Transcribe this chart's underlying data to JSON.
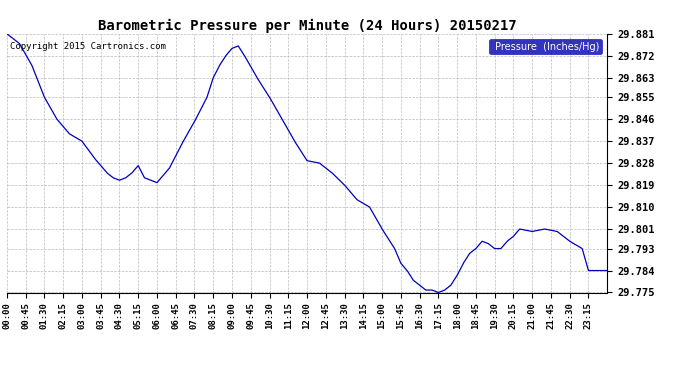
{
  "title": "Barometric Pressure per Minute (24 Hours) 20150217",
  "copyright": "Copyright 2015 Cartronics.com",
  "legend_label": "Pressure  (Inches/Hg)",
  "line_color": "#0000bb",
  "bg_color": "#ffffff",
  "plot_bg_color": "#ffffff",
  "grid_color": "#bbbbbb",
  "grid_style": "--",
  "ylim": [
    29.775,
    29.881
  ],
  "yticks": [
    29.775,
    29.784,
    29.793,
    29.801,
    29.81,
    29.819,
    29.828,
    29.837,
    29.846,
    29.855,
    29.863,
    29.872,
    29.881
  ],
  "xtick_labels": [
    "00:00",
    "00:45",
    "01:30",
    "02:15",
    "03:00",
    "03:45",
    "04:30",
    "05:15",
    "06:00",
    "06:45",
    "07:30",
    "08:15",
    "09:00",
    "09:45",
    "10:30",
    "11:15",
    "12:00",
    "12:45",
    "13:30",
    "14:15",
    "15:00",
    "15:45",
    "16:30",
    "17:15",
    "18:00",
    "18:45",
    "19:30",
    "20:15",
    "21:00",
    "21:45",
    "22:30",
    "23:15"
  ],
  "keypoints_x": [
    0,
    30,
    60,
    90,
    120,
    150,
    180,
    210,
    225,
    240,
    255,
    270,
    285,
    300,
    315,
    330,
    360,
    390,
    420,
    450,
    480,
    495,
    510,
    525,
    540,
    555,
    570,
    600,
    630,
    660,
    690,
    720,
    750,
    780,
    810,
    840,
    870,
    900,
    930,
    945,
    960,
    975,
    990,
    1005,
    1020,
    1035,
    1050,
    1065,
    1080,
    1095,
    1110,
    1125,
    1140,
    1155,
    1170,
    1185,
    1200,
    1215,
    1230,
    1260,
    1290,
    1320,
    1350,
    1380,
    1395,
    1440
  ],
  "keypoints_y": [
    29.881,
    29.877,
    29.868,
    29.855,
    29.846,
    29.84,
    29.837,
    29.83,
    29.827,
    29.824,
    29.822,
    29.821,
    29.822,
    29.824,
    29.827,
    29.822,
    29.82,
    29.826,
    29.836,
    29.845,
    29.855,
    29.863,
    29.868,
    29.872,
    29.875,
    29.876,
    29.872,
    29.863,
    29.855,
    29.846,
    29.837,
    29.829,
    29.828,
    29.824,
    29.819,
    29.813,
    29.81,
    29.801,
    29.793,
    29.787,
    29.784,
    29.78,
    29.778,
    29.776,
    29.776,
    29.775,
    29.776,
    29.778,
    29.782,
    29.787,
    29.791,
    29.793,
    29.796,
    29.795,
    29.793,
    29.793,
    29.796,
    29.798,
    29.801,
    29.8,
    29.801,
    29.8,
    29.796,
    29.793,
    29.784,
    29.784
  ]
}
